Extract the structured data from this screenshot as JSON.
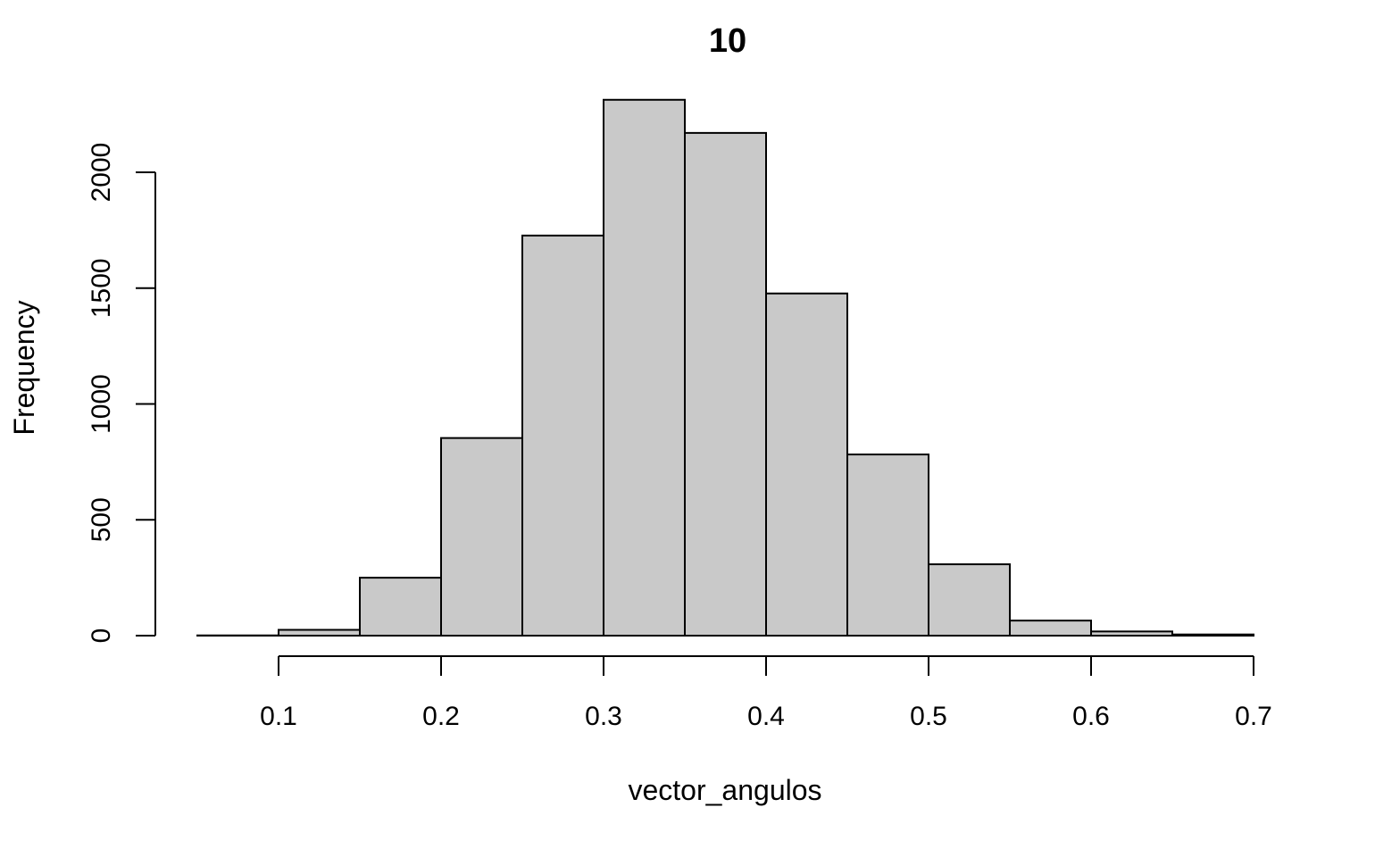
{
  "chart_data": {
    "type": "bar",
    "title": "10",
    "xlabel": "vector_angulos",
    "ylabel": "Frequency",
    "bin_edges": [
      0.05,
      0.1,
      0.15,
      0.2,
      0.25,
      0.3,
      0.35,
      0.4,
      0.45,
      0.5,
      0.55,
      0.6,
      0.65,
      0.7
    ],
    "values": [
      1,
      25,
      250,
      853,
      1727,
      2313,
      2170,
      1477,
      782,
      308,
      65,
      18,
      5
    ],
    "xlim": [
      0.05,
      0.7
    ],
    "ylim": [
      0,
      2350
    ],
    "x_ticks": [
      0.1,
      0.2,
      0.3,
      0.4,
      0.5,
      0.6,
      0.7
    ],
    "x_tick_labels": [
      "0.1",
      "0.2",
      "0.3",
      "0.4",
      "0.5",
      "0.6",
      "0.7"
    ],
    "y_ticks": [
      0,
      500,
      1000,
      1500,
      2000
    ],
    "y_tick_labels": [
      "0",
      "500",
      "1000",
      "1500",
      "2000"
    ],
    "bar_color": "#c9c9c9",
    "grid": false,
    "legend": "none"
  }
}
